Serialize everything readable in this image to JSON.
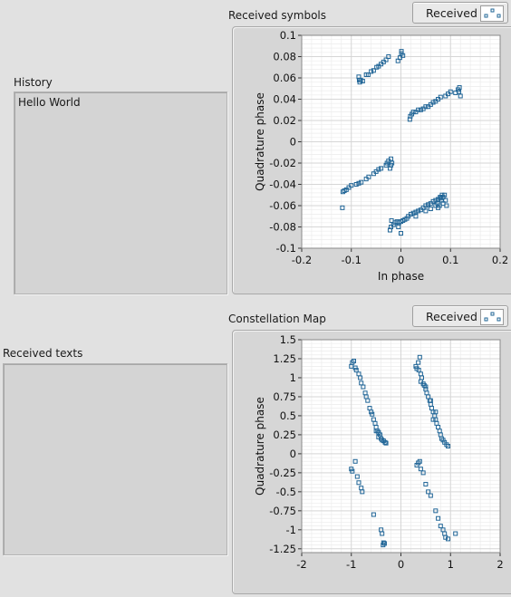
{
  "history": {
    "label": "History",
    "text": "Hello World"
  },
  "received_texts": {
    "label": "Received texts",
    "text": ""
  },
  "symbols_graph": {
    "title": "Received symbols",
    "legend_label": "Received"
  },
  "constellation_graph": {
    "title": "Constellation Map",
    "legend_label": "Received"
  },
  "colors": {
    "marker": "#1f6496",
    "plot_bg": "#ffffff",
    "grid_major": "#d6d6d6",
    "grid_minor": "#ececec"
  },
  "chart_data": [
    {
      "type": "scatter",
      "title": "Received symbols",
      "xlabel": "In phase",
      "ylabel": "Quadrature phase",
      "xlim": [
        -0.2,
        0.2
      ],
      "ylim": [
        -0.1,
        0.1
      ],
      "xticks": [
        "-0.2",
        "-0.1",
        "0",
        "0.1",
        "0.2"
      ],
      "yticks": [
        "0.1",
        "0.08",
        "0.06",
        "0.04",
        "0.02",
        "0",
        "-0.02",
        "-0.04",
        "-0.06",
        "-0.08",
        "-0.1"
      ],
      "grid": true,
      "legend": "top-right",
      "series": [
        {
          "name": "Received",
          "points": [
            [
              -0.085,
              0.061
            ],
            [
              -0.084,
              0.058
            ],
            [
              -0.083,
              0.056
            ],
            [
              -0.081,
              0.058
            ],
            [
              -0.077,
              0.057
            ],
            [
              -0.07,
              0.063
            ],
            [
              -0.066,
              0.063
            ],
            [
              -0.06,
              0.066
            ],
            [
              -0.055,
              0.067
            ],
            [
              -0.049,
              0.07
            ],
            [
              -0.045,
              0.071
            ],
            [
              -0.04,
              0.073
            ],
            [
              -0.035,
              0.075
            ],
            [
              -0.03,
              0.077
            ],
            [
              -0.025,
              0.08
            ],
            [
              -0.006,
              0.076
            ],
            [
              -0.002,
              0.079
            ],
            [
              0.001,
              0.083
            ],
            [
              0.004,
              0.081
            ],
            [
              0.001,
              0.085
            ],
            [
              0.018,
              0.021
            ],
            [
              0.019,
              0.024
            ],
            [
              0.022,
              0.026
            ],
            [
              0.025,
              0.028
            ],
            [
              0.03,
              0.028
            ],
            [
              0.035,
              0.03
            ],
            [
              0.04,
              0.03
            ],
            [
              0.045,
              0.031
            ],
            [
              0.05,
              0.033
            ],
            [
              0.055,
              0.033
            ],
            [
              0.06,
              0.035
            ],
            [
              0.065,
              0.037
            ],
            [
              0.07,
              0.038
            ],
            [
              0.075,
              0.04
            ],
            [
              0.08,
              0.042
            ],
            [
              0.09,
              0.043
            ],
            [
              0.095,
              0.045
            ],
            [
              0.1,
              0.047
            ],
            [
              0.11,
              0.046
            ],
            [
              0.115,
              0.049
            ],
            [
              0.118,
              0.051
            ],
            [
              0.12,
              0.043
            ],
            [
              0.117,
              0.047
            ],
            [
              -0.118,
              -0.062
            ],
            [
              -0.117,
              -0.047
            ],
            [
              -0.114,
              -0.046
            ],
            [
              -0.11,
              -0.045
            ],
            [
              -0.105,
              -0.043
            ],
            [
              -0.1,
              -0.041
            ],
            [
              -0.09,
              -0.04
            ],
            [
              -0.085,
              -0.039
            ],
            [
              -0.08,
              -0.038
            ],
            [
              -0.07,
              -0.035
            ],
            [
              -0.065,
              -0.033
            ],
            [
              -0.055,
              -0.03
            ],
            [
              -0.05,
              -0.028
            ],
            [
              -0.045,
              -0.026
            ],
            [
              -0.04,
              -0.025
            ],
            [
              -0.03,
              -0.022
            ],
            [
              -0.028,
              -0.02
            ],
            [
              -0.025,
              -0.018
            ],
            [
              -0.022,
              -0.025
            ],
            [
              -0.02,
              -0.022
            ],
            [
              -0.018,
              -0.02
            ],
            [
              -0.02,
              -0.016
            ],
            [
              -0.022,
              -0.083
            ],
            [
              -0.02,
              -0.08
            ],
            [
              -0.019,
              -0.074
            ],
            [
              -0.015,
              -0.078
            ],
            [
              -0.012,
              -0.076
            ],
            [
              -0.008,
              -0.075
            ],
            [
              -0.004,
              -0.076
            ],
            [
              0.0,
              -0.075
            ],
            [
              0.004,
              -0.074
            ],
            [
              0.008,
              -0.073
            ],
            [
              0.012,
              -0.072
            ],
            [
              0.015,
              -0.07
            ],
            [
              0.02,
              -0.068
            ],
            [
              0.025,
              -0.067
            ],
            [
              0.03,
              -0.066
            ],
            [
              0.035,
              -0.065
            ],
            [
              0.04,
              -0.064
            ],
            [
              0.045,
              -0.062
            ],
            [
              0.05,
              -0.06
            ],
            [
              0.055,
              -0.059
            ],
            [
              0.06,
              -0.058
            ],
            [
              0.065,
              -0.056
            ],
            [
              0.07,
              -0.055
            ],
            [
              0.075,
              -0.054
            ],
            [
              0.08,
              -0.053
            ],
            [
              0.085,
              -0.052
            ],
            [
              0.088,
              -0.05
            ],
            [
              0.09,
              -0.055
            ],
            [
              0.092,
              -0.06
            ],
            [
              0.085,
              -0.058
            ],
            [
              0.078,
              -0.06
            ],
            [
              0.075,
              -0.062
            ],
            [
              0.06,
              -0.063
            ],
            [
              0.05,
              -0.065
            ],
            [
              0.03,
              -0.07
            ],
            [
              0.0,
              -0.086
            ],
            [
              -0.005,
              -0.08
            ],
            [
              0.083,
              -0.05
            ],
            [
              0.079,
              -0.052
            ],
            [
              0.082,
              -0.055
            ],
            [
              0.074,
              -0.058
            ],
            [
              0.07,
              -0.06
            ]
          ]
        }
      ]
    },
    {
      "type": "scatter",
      "title": "Constellation Map",
      "xlabel": "",
      "ylabel": "Quadrature phase",
      "xlim": [
        -2,
        2
      ],
      "ylim": [
        -1.3,
        1.5
      ],
      "xticks": [
        "-2",
        "-1",
        "0",
        "1",
        "2"
      ],
      "yticks": [
        "1.5",
        "1.25",
        "1",
        "0.75",
        "0.5",
        "0.25",
        "0",
        "-0.25",
        "-0.5",
        "-0.75",
        "-1",
        "-1.25"
      ],
      "grid": true,
      "legend": "top-right",
      "series": [
        {
          "name": "Received",
          "points": [
            [
              -1.0,
              1.15
            ],
            [
              -0.98,
              1.2
            ],
            [
              -0.95,
              1.22
            ],
            [
              -0.92,
              1.13
            ],
            [
              -0.9,
              1.1
            ],
            [
              -0.85,
              1.05
            ],
            [
              -0.82,
              1.0
            ],
            [
              -0.8,
              0.93
            ],
            [
              -0.76,
              0.88
            ],
            [
              -0.72,
              0.8
            ],
            [
              -0.7,
              0.75
            ],
            [
              -0.67,
              0.7
            ],
            [
              -0.63,
              0.6
            ],
            [
              -0.6,
              0.55
            ],
            [
              -0.58,
              0.52
            ],
            [
              -0.55,
              0.45
            ],
            [
              -0.52,
              0.4
            ],
            [
              -0.5,
              0.35
            ],
            [
              -0.47,
              0.3
            ],
            [
              -0.45,
              0.28
            ],
            [
              -0.42,
              0.25
            ],
            [
              -0.4,
              0.2
            ],
            [
              -0.38,
              0.18
            ],
            [
              -0.35,
              0.17
            ],
            [
              -0.32,
              0.15
            ],
            [
              -0.3,
              0.14
            ],
            [
              -0.5,
              0.3
            ],
            [
              -0.45,
              0.22
            ],
            [
              0.3,
              1.15
            ],
            [
              0.32,
              1.12
            ],
            [
              0.35,
              1.2
            ],
            [
              0.38,
              1.27
            ],
            [
              0.36,
              1.1
            ],
            [
              0.4,
              1.05
            ],
            [
              0.42,
              1.0
            ],
            [
              0.45,
              0.92
            ],
            [
              0.47,
              0.9
            ],
            [
              0.5,
              0.85
            ],
            [
              0.52,
              0.8
            ],
            [
              0.55,
              0.75
            ],
            [
              0.58,
              0.7
            ],
            [
              0.6,
              0.65
            ],
            [
              0.62,
              0.6
            ],
            [
              0.65,
              0.55
            ],
            [
              0.68,
              0.5
            ],
            [
              0.7,
              0.45
            ],
            [
              0.72,
              0.4
            ],
            [
              0.75,
              0.35
            ],
            [
              0.78,
              0.3
            ],
            [
              0.8,
              0.25
            ],
            [
              0.82,
              0.2
            ],
            [
              0.85,
              0.18
            ],
            [
              0.88,
              0.15
            ],
            [
              0.92,
              0.12
            ],
            [
              0.95,
              0.1
            ],
            [
              0.4,
              0.95
            ],
            [
              0.5,
              0.88
            ],
            [
              0.6,
              0.7
            ],
            [
              0.7,
              0.55
            ],
            [
              0.65,
              0.45
            ],
            [
              -1.0,
              -0.2
            ],
            [
              -0.98,
              -0.23
            ],
            [
              -0.92,
              -0.1
            ],
            [
              -0.88,
              -0.3
            ],
            [
              -0.85,
              -0.38
            ],
            [
              -0.8,
              -0.45
            ],
            [
              -0.78,
              -0.5
            ],
            [
              -0.55,
              -0.8
            ],
            [
              -0.4,
              -1.0
            ],
            [
              -0.38,
              -1.05
            ],
            [
              -0.35,
              -1.17
            ],
            [
              -0.33,
              -1.18
            ],
            [
              -0.36,
              -1.2
            ],
            [
              0.32,
              -0.15
            ],
            [
              0.35,
              -0.12
            ],
            [
              0.38,
              -0.1
            ],
            [
              0.4,
              -0.2
            ],
            [
              0.45,
              -0.25
            ],
            [
              0.5,
              -0.4
            ],
            [
              0.55,
              -0.5
            ],
            [
              0.6,
              -0.55
            ],
            [
              0.7,
              -0.75
            ],
            [
              0.75,
              -0.85
            ],
            [
              0.8,
              -0.95
            ],
            [
              0.85,
              -1.0
            ],
            [
              0.88,
              -1.05
            ],
            [
              0.9,
              -1.1
            ],
            [
              1.1,
              -1.05
            ],
            [
              0.95,
              -1.12
            ]
          ]
        }
      ]
    }
  ]
}
